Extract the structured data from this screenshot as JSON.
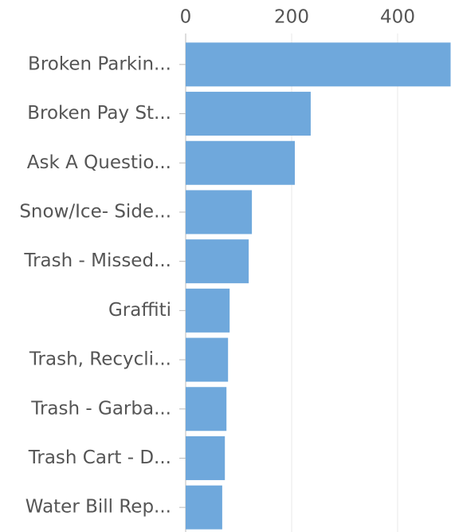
{
  "chart_data": {
    "type": "barh",
    "categories": [
      "Broken Parkin...",
      "Broken Pay St...",
      "Ask A Questio...",
      "Snow/Ice- Side...",
      "Trash - Missed...",
      "Graffiti",
      "Trash, Recycli...",
      "Trash - Garba...",
      "Trash Cart - D...",
      "Water Bill Rep..."
    ],
    "values": [
      500,
      236,
      206,
      125,
      119,
      83,
      80,
      77,
      74,
      69
    ],
    "color": "#6fa8dc",
    "xlim": [
      0,
      500
    ],
    "xticks": [
      0,
      200,
      400
    ],
    "grid": true
  }
}
